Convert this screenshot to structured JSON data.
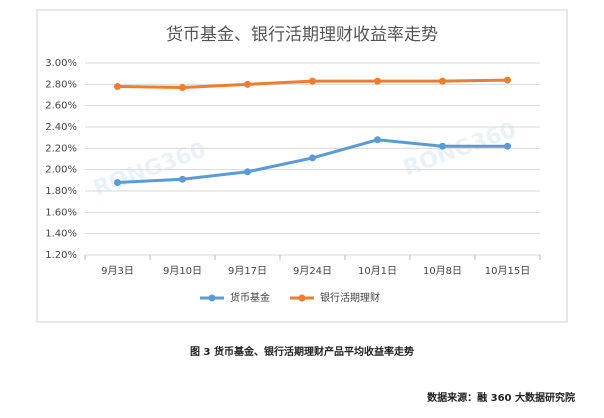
{
  "chart_data": {
    "type": "line",
    "title": "货币基金、银行活期理财收益率走势",
    "categories": [
      "9月3日",
      "9月10日",
      "9月17日",
      "9月24日",
      "10月1日",
      "10月8日",
      "10月15日"
    ],
    "series": [
      {
        "name": "货币基金",
        "color": "#5b9bd5",
        "values": [
          1.88,
          1.91,
          1.98,
          2.11,
          2.28,
          2.22,
          2.22
        ]
      },
      {
        "name": "银行活期理财",
        "color": "#ed7d31",
        "values": [
          2.78,
          2.77,
          2.8,
          2.83,
          2.83,
          2.83,
          2.84
        ]
      }
    ],
    "ylim": [
      1.2,
      3.0
    ],
    "yticks": [
      {
        "value": 1.2,
        "label": "1.20%"
      },
      {
        "value": 1.4,
        "label": "1.40%"
      },
      {
        "value": 1.6,
        "label": "1.60%"
      },
      {
        "value": 1.8,
        "label": "1.80%"
      },
      {
        "value": 2.0,
        "label": "2.00%"
      },
      {
        "value": 2.2,
        "label": "2.20%"
      },
      {
        "value": 2.4,
        "label": "2.40%"
      },
      {
        "value": 2.6,
        "label": "2.60%"
      },
      {
        "value": 2.8,
        "label": "2.80%"
      },
      {
        "value": 3.0,
        "label": "3.00%"
      }
    ],
    "grid": true,
    "legend": "bottom",
    "watermark": "RONG360"
  },
  "caption": "图 3 货币基金、银行活期理财产品平均收益率走势",
  "source": "数据来源：融 360 大数据研究院"
}
